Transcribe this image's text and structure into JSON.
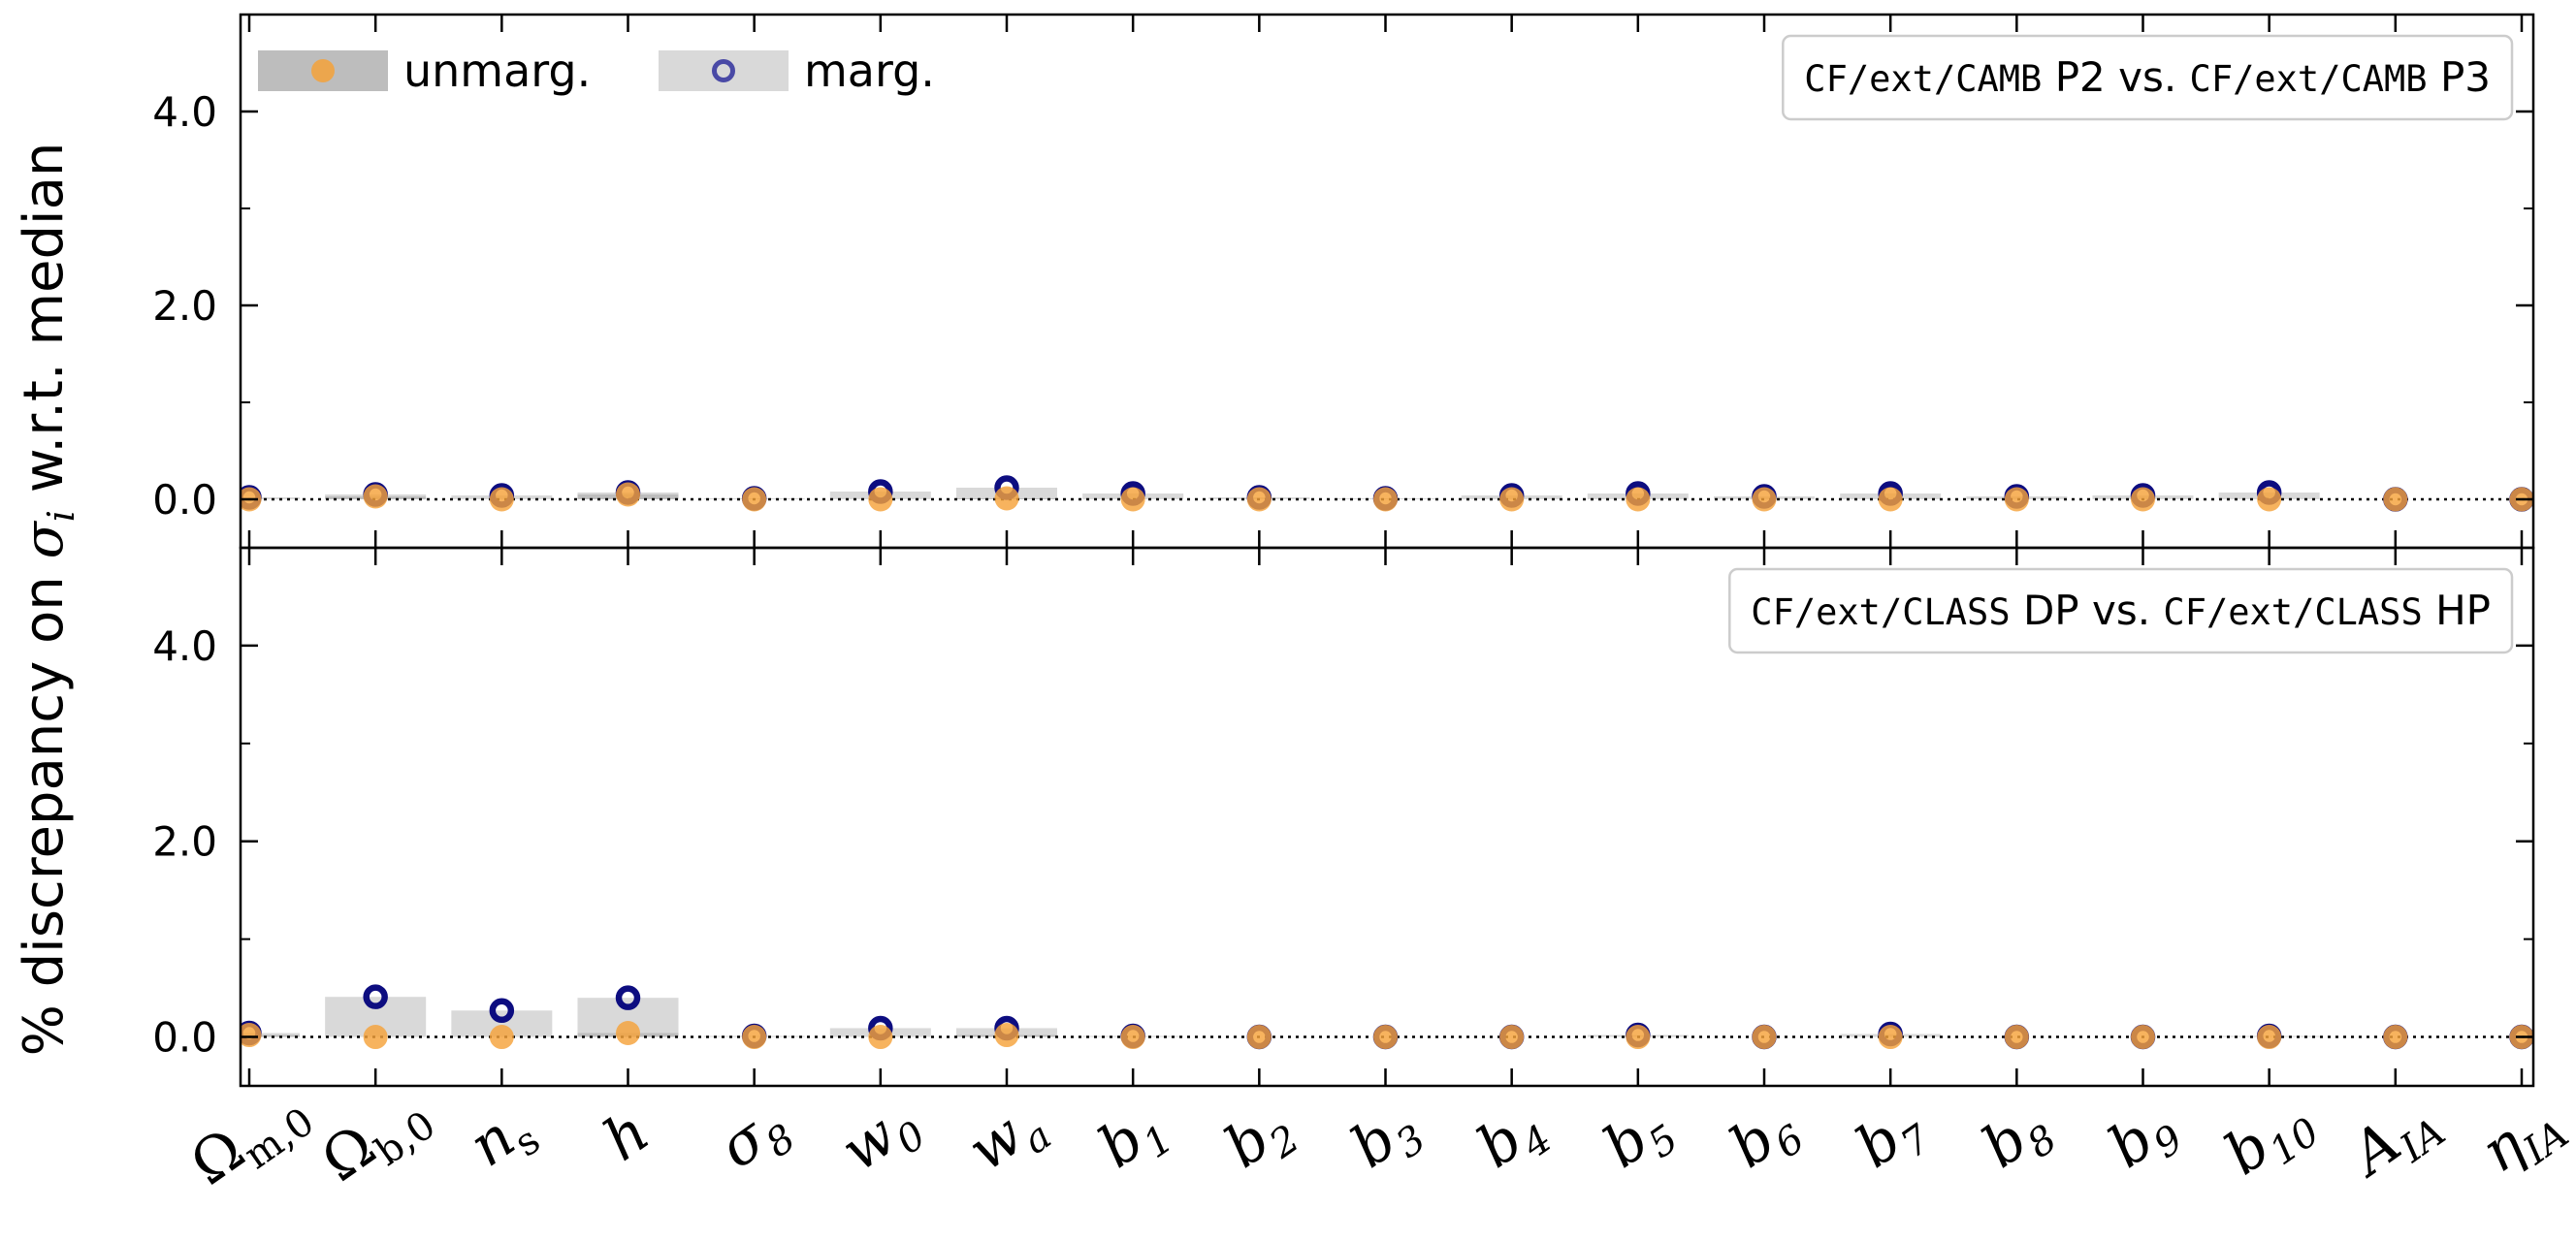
{
  "ylabel": {
    "prefix": "% discrepancy on ",
    "symbol": "σ",
    "subscript": "i",
    "suffix": " w.r.t. median"
  },
  "legend": {
    "unmarg": "unmarg.",
    "marg": "marg."
  },
  "params": [
    {
      "base": "Ω",
      "sub": "m,0",
      "subUpright": true
    },
    {
      "base": "Ω",
      "sub": "b,0",
      "subUpright": true
    },
    {
      "base": "n",
      "sub": "s",
      "subUpright": true
    },
    {
      "base": "h",
      "sub": ""
    },
    {
      "base": "σ",
      "sub": "8"
    },
    {
      "base": "w",
      "sub": "0"
    },
    {
      "base": "w",
      "sub": "a"
    },
    {
      "base": "b",
      "sub": "1"
    },
    {
      "base": "b",
      "sub": "2"
    },
    {
      "base": "b",
      "sub": "3"
    },
    {
      "base": "b",
      "sub": "4"
    },
    {
      "base": "b",
      "sub": "5"
    },
    {
      "base": "b",
      "sub": "6"
    },
    {
      "base": "b",
      "sub": "7"
    },
    {
      "base": "b",
      "sub": "8"
    },
    {
      "base": "b",
      "sub": "9"
    },
    {
      "base": "b",
      "sub": "10"
    },
    {
      "base": "A",
      "sub": "IA"
    },
    {
      "base": "η",
      "sub": "IA"
    }
  ],
  "colors": {
    "unmarg": "#f5a23a",
    "marg": "#0d0d80",
    "bar_marg": "#d9d9d9",
    "bar_unmarg": "#bdbdbd"
  },
  "chart_data": [
    {
      "type": "bar",
      "annotation": [
        {
          "text": "CF/ext/CAMB",
          "mono": true
        },
        {
          "text": " P2 vs. ",
          "mono": false
        },
        {
          "text": "CF/ext/CAMB",
          "mono": true
        },
        {
          "text": " P3",
          "mono": false
        }
      ],
      "ylim": [
        -0.5,
        5.0
      ],
      "yticks": [
        0.0,
        2.0,
        4.0
      ],
      "ytick_labels": [
        "0.0",
        "2.0",
        "4.0"
      ],
      "series": [
        {
          "name": "unmarg.",
          "values": [
            0.0,
            0.03,
            0.0,
            0.05,
            0.0,
            0.0,
            0.01,
            0.0,
            0.0,
            0.0,
            0.0,
            0.0,
            0.0,
            0.0,
            0.0,
            0.0,
            0.0,
            0.0,
            0.0
          ]
        },
        {
          "name": "marg.",
          "values": [
            0.02,
            0.05,
            0.04,
            0.07,
            0.01,
            0.08,
            0.12,
            0.06,
            0.02,
            0.01,
            0.04,
            0.06,
            0.03,
            0.06,
            0.03,
            0.04,
            0.07,
            0.0,
            0.0
          ]
        }
      ]
    },
    {
      "type": "bar",
      "annotation": [
        {
          "text": "CF/ext/CLASS",
          "mono": true
        },
        {
          "text": " DP vs. ",
          "mono": false
        },
        {
          "text": "CF/ext/CLASS",
          "mono": true
        },
        {
          "text": " HP",
          "mono": false
        }
      ],
      "ylim": [
        -0.5,
        5.0
      ],
      "yticks": [
        0.0,
        2.0,
        4.0
      ],
      "ytick_labels": [
        "0.0",
        "2.0",
        "4.0"
      ],
      "series": [
        {
          "name": "unmarg.",
          "values": [
            0.02,
            0.0,
            0.0,
            0.04,
            0.0,
            0.0,
            0.02,
            0.0,
            0.0,
            0.0,
            0.0,
            0.0,
            0.0,
            0.0,
            0.0,
            0.0,
            0.0,
            0.0,
            0.0
          ]
        },
        {
          "name": "marg.",
          "values": [
            0.04,
            0.41,
            0.27,
            0.4,
            0.01,
            0.09,
            0.09,
            0.01,
            0.0,
            0.0,
            0.0,
            0.02,
            0.0,
            0.03,
            0.0,
            0.0,
            0.01,
            0.0,
            0.0
          ]
        }
      ]
    }
  ]
}
